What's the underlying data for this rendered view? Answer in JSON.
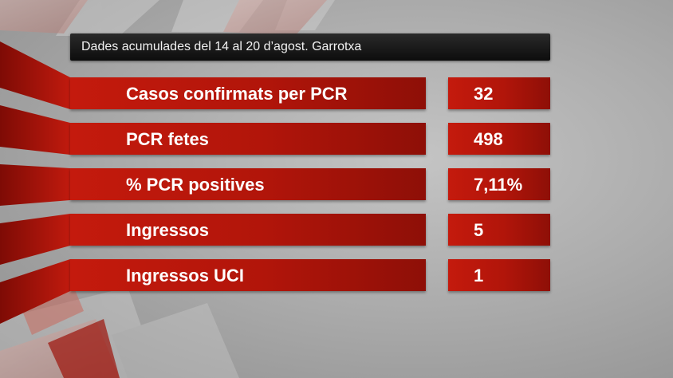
{
  "title": "Dades acumulades del 14 al 20 d’agost. Garrotxa",
  "rows": [
    {
      "label": "Casos confirmats per PCR",
      "value": "32"
    },
    {
      "label": "PCR fetes",
      "value": "498"
    },
    {
      "label": "% PCR positives",
      "value": "7,11%"
    },
    {
      "label": "Ingressos",
      "value": "5"
    },
    {
      "label": "Ingressos UCI",
      "value": "1"
    }
  ],
  "colors": {
    "bar_red": "#b1150a",
    "title_bar": "#111111",
    "background": "#b0b0b0"
  }
}
